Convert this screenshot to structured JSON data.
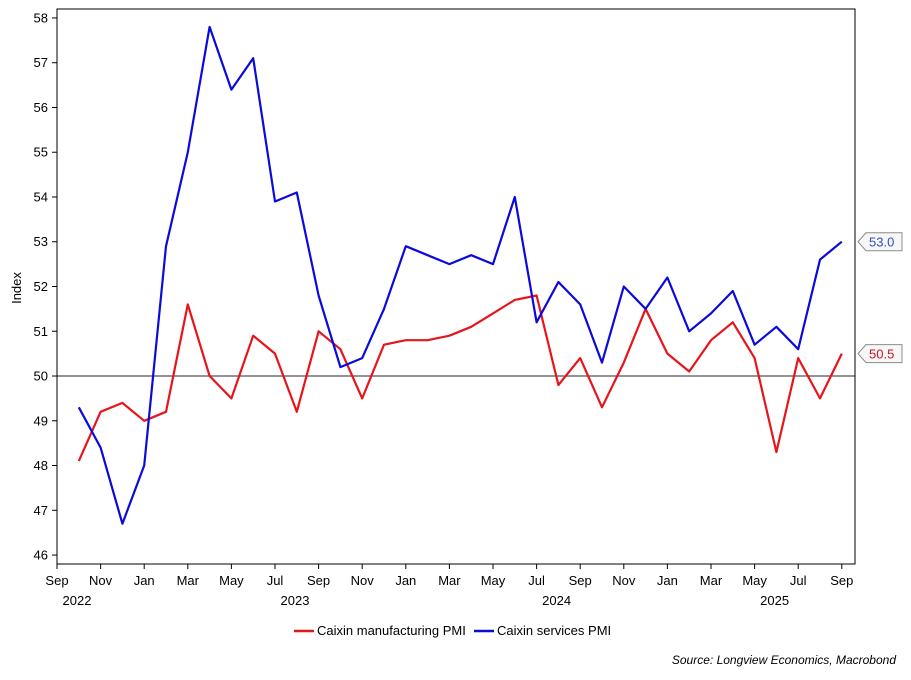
{
  "chart_data": {
    "type": "line",
    "ylabel": "Index",
    "ylim": [
      45.8,
      58.2
    ],
    "yticks": [
      46,
      47,
      48,
      49,
      50,
      51,
      52,
      53,
      54,
      55,
      56,
      57,
      58
    ],
    "reference_line": 50,
    "x_start": "2022-09",
    "x_month_ticks": [
      "Sep",
      "Nov",
      "Jan",
      "Mar",
      "May",
      "Jul",
      "Sep",
      "Nov",
      "Jan",
      "Mar",
      "May",
      "Jul",
      "Sep",
      "Nov",
      "Jan",
      "Mar",
      "May",
      "Jul",
      "Sep"
    ],
    "x_year_labels": [
      {
        "label": "2022",
        "tick_index": 0
      },
      {
        "label": "2023",
        "tick_index": 5
      },
      {
        "label": "2024",
        "tick_index": 11
      },
      {
        "label": "2025",
        "tick_index": 16
      }
    ],
    "x_months": [
      "2022-10",
      "2022-11",
      "2022-12",
      "2023-01",
      "2023-02",
      "2023-03",
      "2023-04",
      "2023-05",
      "2023-06",
      "2023-07",
      "2023-08",
      "2023-09",
      "2023-10",
      "2023-11",
      "2023-12",
      "2024-01",
      "2024-02",
      "2024-03",
      "2024-04",
      "2024-05",
      "2024-06",
      "2024-07",
      "2024-08",
      "2024-09",
      "2024-10",
      "2024-11",
      "2024-12",
      "2025-01",
      "2025-02",
      "2025-03",
      "2025-04",
      "2025-05",
      "2025-06",
      "2025-07",
      "2025-08",
      "2025-09"
    ],
    "series": [
      {
        "name": "Caixin manufacturing PMI",
        "color": "#e8141b",
        "values": [
          48.1,
          49.2,
          49.4,
          49.0,
          49.2,
          51.6,
          50.0,
          49.5,
          50.9,
          50.5,
          49.2,
          51.0,
          50.6,
          49.5,
          50.7,
          50.8,
          50.8,
          50.9,
          51.1,
          51.4,
          51.7,
          51.8,
          49.8,
          50.4,
          49.3,
          50.3,
          51.5,
          50.5,
          50.1,
          50.8,
          51.2,
          50.4,
          48.3,
          50.4,
          49.5,
          50.5
        ],
        "end_label": "50.5"
      },
      {
        "name": "Caixin services PMI",
        "color": "#0a0adc",
        "values": [
          49.3,
          48.4,
          46.7,
          48.0,
          52.9,
          55.0,
          57.8,
          56.4,
          57.1,
          53.9,
          54.1,
          51.8,
          50.2,
          50.4,
          51.5,
          52.9,
          52.7,
          52.5,
          52.7,
          52.5,
          54.0,
          51.2,
          52.1,
          51.6,
          50.3,
          52.0,
          51.5,
          52.2,
          51.0,
          51.4,
          51.9,
          50.7,
          51.1,
          50.6,
          52.6,
          53.0
        ],
        "end_label": "53.0"
      }
    ],
    "source": "Source: Longview Economics, Macrobond"
  }
}
